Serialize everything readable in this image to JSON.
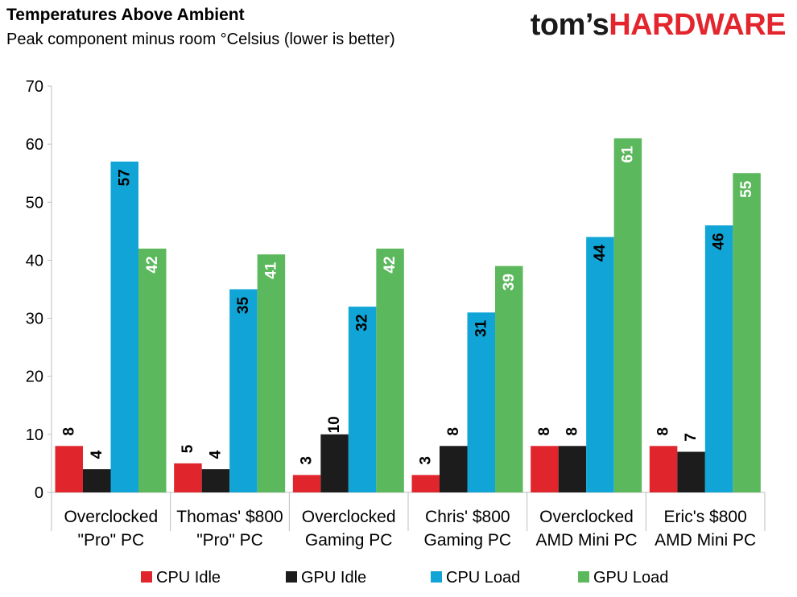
{
  "header": {
    "title": "Temperatures Above Ambient",
    "subtitle": "Peak component minus room °Celsius (lower is better)",
    "logo_part1": "tom’s",
    "logo_part2": "HARDWARE"
  },
  "chart_data": {
    "type": "bar",
    "title": "Temperatures Above Ambient",
    "subtitle": "Peak component minus room °Celsius (lower is better)",
    "categories": [
      [
        "Overclocked",
        "\"Pro\" PC"
      ],
      [
        "Thomas' $800",
        "\"Pro\" PC"
      ],
      [
        "Overclocked",
        "Gaming PC"
      ],
      [
        "Chris' $800",
        "Gaming PC"
      ],
      [
        "Overclocked",
        "AMD Mini PC"
      ],
      [
        "Eric's $800",
        "AMD Mini PC"
      ]
    ],
    "series": [
      {
        "name": "CPU Idle",
        "color": "#e0262c",
        "label_color": "#000000",
        "values": [
          8,
          5,
          3,
          3,
          8,
          8
        ]
      },
      {
        "name": "GPU Idle",
        "color": "#1c1c1c",
        "label_color": "#000000",
        "values": [
          4,
          4,
          10,
          8,
          8,
          7
        ]
      },
      {
        "name": "CPU Load",
        "color": "#10a5d6",
        "label_color": "#000000",
        "values": [
          57,
          35,
          32,
          31,
          44,
          46
        ]
      },
      {
        "name": "GPU Load",
        "color": "#5cb85c",
        "label_color": "#ffffff",
        "values": [
          42,
          41,
          42,
          39,
          61,
          55
        ]
      }
    ],
    "ylim": [
      0,
      70
    ],
    "yticks": [
      0,
      10,
      20,
      30,
      40,
      50,
      60,
      70
    ],
    "grid": false,
    "legend_position": "bottom",
    "xlabel": "",
    "ylabel": ""
  }
}
